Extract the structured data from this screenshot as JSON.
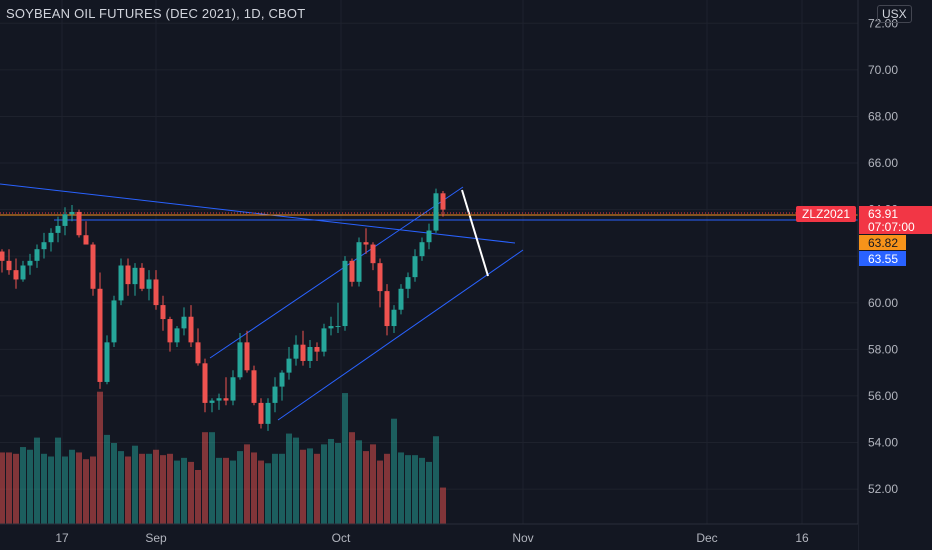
{
  "header": {
    "title": "SOYBEAN OIL FUTURES (DEC 2021), 1D, CBOT",
    "currency": "USX"
  },
  "price_labels": {
    "symbol": "ZLZ2021",
    "last_price": "63.91",
    "countdown": "07:07:00",
    "orange_price": "63.82",
    "blue_price": "63.55"
  },
  "colors": {
    "background": "#131722",
    "up": "#26a69a",
    "down": "#ef5350",
    "trendline": "#2962ff",
    "last_price": "#f23645",
    "orange": "#f7931a",
    "blue_label": "#2962ff"
  },
  "chart_data": {
    "type": "candlestick",
    "y_range": [
      50.5,
      73.0
    ],
    "y_ticks": [
      "52.00",
      "54.00",
      "56.00",
      "58.00",
      "60.00",
      "62.00",
      "64.00",
      "66.00",
      "68.00",
      "70.00",
      "72.00"
    ],
    "x_ticks": [
      "17",
      "Sep",
      "Oct",
      "Nov",
      "Dec",
      "16"
    ],
    "candles": [
      [
        62.2,
        62.3,
        61.3,
        61.8,
        2.65
      ],
      [
        61.8,
        62.3,
        61.2,
        61.4,
        2.65
      ],
      [
        61.4,
        61.9,
        60.6,
        61.0,
        2.6
      ],
      [
        61.0,
        61.8,
        60.9,
        61.6,
        2.85
      ],
      [
        61.6,
        62.1,
        61.2,
        61.8,
        2.75
      ],
      [
        61.8,
        62.5,
        61.5,
        62.3,
        3.2
      ],
      [
        62.3,
        63.0,
        61.9,
        62.6,
        2.6
      ],
      [
        62.6,
        63.2,
        62.2,
        63.0,
        2.5
      ],
      [
        63.0,
        63.7,
        62.6,
        63.3,
        3.2
      ],
      [
        63.3,
        64.1,
        62.9,
        63.8,
        2.5
      ],
      [
        63.8,
        64.2,
        63.5,
        63.9,
        2.75
      ],
      [
        63.9,
        64.0,
        62.8,
        62.9,
        2.65
      ],
      [
        62.9,
        63.5,
        62.5,
        62.5,
        2.4
      ],
      [
        62.5,
        62.6,
        60.3,
        60.6,
        2.5
      ],
      [
        60.6,
        61.3,
        56.3,
        56.6,
        4.9
      ],
      [
        56.6,
        58.6,
        56.5,
        58.3,
        3.3
      ],
      [
        58.3,
        60.3,
        58.1,
        60.1,
        3.0
      ],
      [
        60.1,
        61.9,
        59.9,
        61.6,
        2.7
      ],
      [
        61.6,
        61.9,
        60.3,
        60.8,
        2.5
      ],
      [
        60.8,
        61.7,
        60.3,
        61.5,
        2.9
      ],
      [
        61.5,
        61.7,
        60.5,
        60.6,
        2.6
      ],
      [
        60.6,
        61.4,
        60.1,
        61.0,
        2.6
      ],
      [
        61.0,
        61.4,
        59.7,
        59.9,
        2.75
      ],
      [
        59.9,
        60.3,
        58.8,
        59.3,
        2.55
      ],
      [
        59.3,
        59.4,
        57.9,
        58.3,
        2.6
      ],
      [
        58.3,
        59.0,
        58.1,
        58.9,
        2.35
      ],
      [
        58.9,
        59.8,
        58.6,
        59.4,
        2.45
      ],
      [
        59.4,
        59.9,
        58.1,
        58.3,
        2.3
      ],
      [
        58.3,
        58.9,
        57.3,
        57.4,
        2.0
      ],
      [
        57.4,
        57.6,
        55.3,
        55.7,
        3.4
      ],
      [
        55.7,
        55.9,
        55.3,
        55.8,
        3.4
      ],
      [
        55.8,
        56.1,
        55.4,
        55.9,
        2.45
      ],
      [
        55.9,
        56.8,
        55.6,
        55.8,
        2.45
      ],
      [
        55.8,
        57.1,
        55.6,
        56.8,
        2.35
      ],
      [
        56.8,
        58.7,
        56.7,
        58.3,
        2.7
      ],
      [
        58.3,
        58.8,
        57.0,
        57.1,
        2.95
      ],
      [
        57.1,
        57.3,
        55.6,
        55.7,
        2.65
      ],
      [
        55.7,
        55.9,
        54.6,
        54.8,
        2.35
      ],
      [
        54.8,
        55.9,
        54.5,
        55.7,
        2.25
      ],
      [
        55.7,
        56.8,
        55.3,
        56.4,
        2.6
      ],
      [
        56.4,
        57.1,
        55.8,
        57.0,
        2.6
      ],
      [
        57.0,
        58.1,
        56.7,
        57.6,
        3.35
      ],
      [
        57.6,
        58.6,
        57.3,
        58.2,
        3.2
      ],
      [
        58.2,
        58.8,
        57.3,
        57.5,
        2.75
      ],
      [
        57.5,
        58.4,
        57.2,
        58.1,
        2.8
      ],
      [
        58.1,
        58.3,
        57.5,
        57.9,
        2.6
      ],
      [
        57.9,
        59.1,
        57.7,
        58.9,
        2.95
      ],
      [
        58.9,
        59.4,
        58.6,
        59.0,
        3.15
      ],
      [
        59.0,
        60.0,
        58.7,
        59.0,
        3.0
      ],
      [
        59.0,
        62.0,
        58.8,
        61.8,
        4.85
      ],
      [
        61.8,
        61.9,
        60.7,
        60.9,
        3.4
      ],
      [
        60.9,
        62.8,
        60.7,
        62.6,
        3.1
      ],
      [
        62.6,
        63.2,
        62.1,
        62.5,
        2.7
      ],
      [
        62.5,
        62.6,
        61.4,
        61.7,
        2.95
      ],
      [
        61.7,
        61.9,
        59.8,
        60.5,
        2.35
      ],
      [
        60.5,
        60.8,
        58.6,
        59.0,
        2.6
      ],
      [
        59.0,
        59.9,
        58.7,
        59.7,
        3.9
      ],
      [
        59.7,
        60.8,
        59.5,
        60.6,
        2.65
      ],
      [
        60.6,
        61.3,
        60.2,
        61.1,
        2.55
      ],
      [
        61.1,
        62.3,
        60.9,
        62.0,
        2.55
      ],
      [
        62.0,
        62.8,
        61.8,
        62.6,
        2.45
      ],
      [
        62.6,
        63.4,
        62.3,
        63.1,
        2.3
      ],
      [
        63.1,
        64.9,
        63.0,
        64.7,
        3.25
      ],
      [
        64.7,
        64.8,
        63.7,
        64.0,
        1.35
      ]
    ]
  }
}
